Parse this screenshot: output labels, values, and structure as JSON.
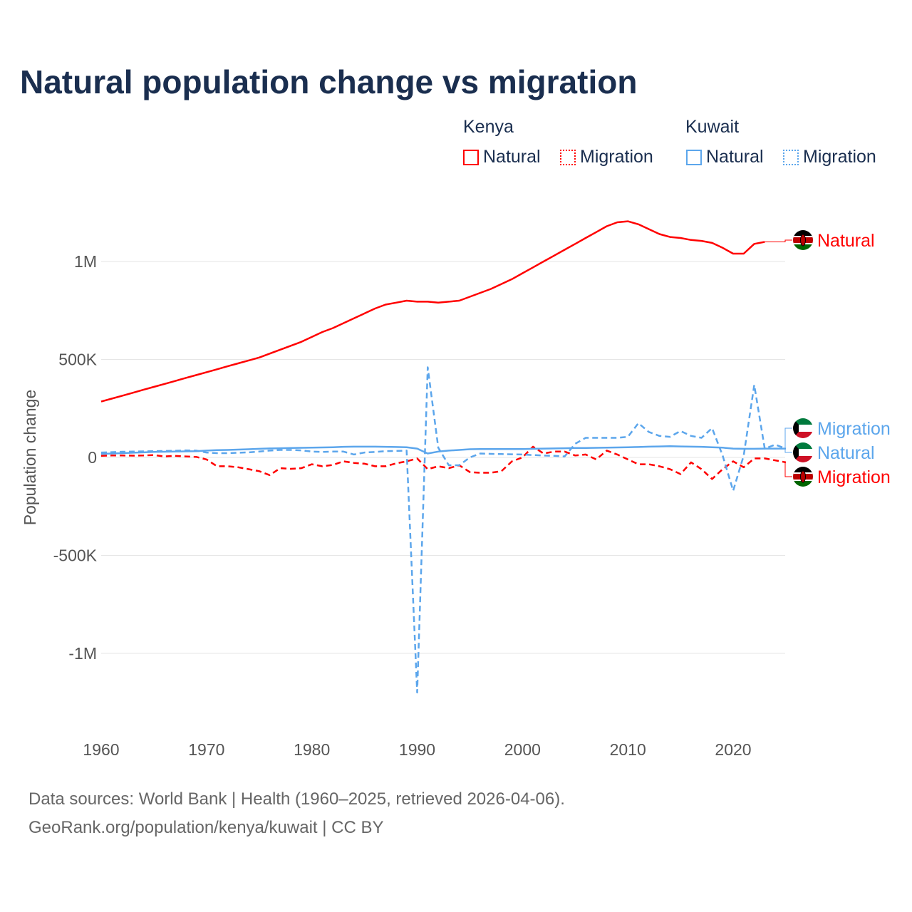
{
  "title": "Natural population change vs migration",
  "legend": {
    "groups": [
      {
        "name": "Kenya",
        "items": [
          "Natural",
          "Migration"
        ]
      },
      {
        "name": "Kuwait",
        "items": [
          "Natural",
          "Migration"
        ]
      }
    ]
  },
  "colors": {
    "kenya": "#ff0000",
    "kuwait": "#5ca6ec",
    "title": "#1a2e4f"
  },
  "source_line1": "Data sources: World Bank | Health (1960–2025, retrieved 2026-04-06).",
  "source_line2": "GeoRank.org/population/kenya/kuwait | CC BY",
  "chart_data": {
    "type": "line",
    "title": "Natural population change vs migration",
    "xlabel": "",
    "ylabel": "Population change",
    "xlim": [
      1960,
      2025
    ],
    "ylim": [
      -1250000,
      1250000
    ],
    "x_ticks": [
      1960,
      1970,
      1980,
      1990,
      2000,
      2010,
      2020
    ],
    "x_tick_labels": [
      "1960",
      "1970",
      "1980",
      "1990",
      "2000",
      "2010",
      "2020"
    ],
    "y_ticks": [
      1000000,
      500000,
      0,
      -500000,
      -1000000
    ],
    "y_tick_labels": [
      "1M",
      "500K",
      "0",
      "-500K",
      "-1M"
    ],
    "grid": true,
    "x_start": 1960,
    "series": [
      {
        "name": "Kenya Natural",
        "country": "Kenya",
        "kind": "Natural",
        "color": "#ff0000",
        "dash": false,
        "end_label": "Natural",
        "values": [
          285000,
          300000,
          315000,
          330000,
          345000,
          360000,
          375000,
          390000,
          405000,
          420000,
          435000,
          450000,
          465000,
          480000,
          495000,
          510000,
          530000,
          550000,
          570000,
          590000,
          615000,
          640000,
          660000,
          685000,
          710000,
          735000,
          760000,
          780000,
          790000,
          800000,
          795000,
          795000,
          790000,
          795000,
          800000,
          820000,
          840000,
          860000,
          885000,
          910000,
          940000,
          970000,
          1000000,
          1030000,
          1060000,
          1090000,
          1120000,
          1150000,
          1180000,
          1200000,
          1205000,
          1190000,
          1165000,
          1140000,
          1125000,
          1120000,
          1110000,
          1105000,
          1095000,
          1070000,
          1040000,
          1040000,
          1090000,
          1100000,
          null,
          null
        ]
      },
      {
        "name": "Kenya Migration",
        "country": "Kenya",
        "kind": "Migration",
        "color": "#ff0000",
        "dash": true,
        "end_label": "Migration",
        "values": [
          8000,
          10000,
          10000,
          9000,
          10000,
          12000,
          5000,
          8000,
          5000,
          3000,
          -10000,
          -45000,
          -45000,
          -50000,
          -60000,
          -70000,
          -90000,
          -55000,
          -58000,
          -55000,
          -35000,
          -45000,
          -38000,
          -20000,
          -28000,
          -32000,
          -45000,
          -45000,
          -30000,
          -20000,
          -5000,
          -60000,
          -45000,
          -55000,
          -40000,
          -75000,
          -78000,
          -78000,
          -70000,
          -20000,
          0,
          55000,
          20000,
          30000,
          30000,
          10000,
          15000,
          -10000,
          35000,
          15000,
          -10000,
          -35000,
          -35000,
          -45000,
          -60000,
          -85000,
          -25000,
          -60000,
          -110000,
          -60000,
          -20000,
          -50000,
          -5000,
          -5000,
          -15000,
          -25000
        ]
      },
      {
        "name": "Kuwait Natural",
        "country": "Kuwait",
        "kind": "Natural",
        "color": "#5ca6ec",
        "dash": false,
        "end_label": "Natural",
        "values": [
          18000,
          20000,
          22000,
          24000,
          26000,
          28000,
          29000,
          30000,
          31000,
          32000,
          35000,
          37000,
          38000,
          40000,
          42000,
          44000,
          46000,
          47000,
          48000,
          49000,
          50000,
          51000,
          52000,
          54000,
          55000,
          55000,
          55000,
          54000,
          53000,
          52000,
          45000,
          20000,
          30000,
          35000,
          38000,
          42000,
          43000,
          43000,
          43000,
          43000,
          43000,
          44000,
          45000,
          46000,
          47000,
          48000,
          48000,
          49000,
          50000,
          51000,
          52000,
          53000,
          55000,
          56000,
          57000,
          56000,
          55000,
          54000,
          52000,
          50000,
          45000,
          44000,
          44000,
          45000,
          45000,
          45000
        ]
      },
      {
        "name": "Kuwait Migration",
        "country": "Kuwait",
        "kind": "Migration",
        "color": "#5ca6ec",
        "dash": true,
        "end_label": "Migration",
        "values": [
          25000,
          27000,
          29000,
          30000,
          31000,
          32000,
          33000,
          34000,
          36000,
          35000,
          25000,
          22000,
          22000,
          24000,
          26000,
          30000,
          35000,
          38000,
          38000,
          36000,
          30000,
          28000,
          30000,
          30000,
          15000,
          25000,
          28000,
          32000,
          33000,
          35000,
          -1200000,
          460000,
          50000,
          -40000,
          -40000,
          0,
          20000,
          18000,
          17000,
          16000,
          15000,
          12000,
          10000,
          8000,
          5000,
          70000,
          100000,
          100000,
          100000,
          100000,
          105000,
          175000,
          130000,
          110000,
          105000,
          135000,
          110000,
          100000,
          150000,
          10000,
          -170000,
          10000,
          370000,
          45000,
          65000,
          45000
        ]
      }
    ]
  }
}
